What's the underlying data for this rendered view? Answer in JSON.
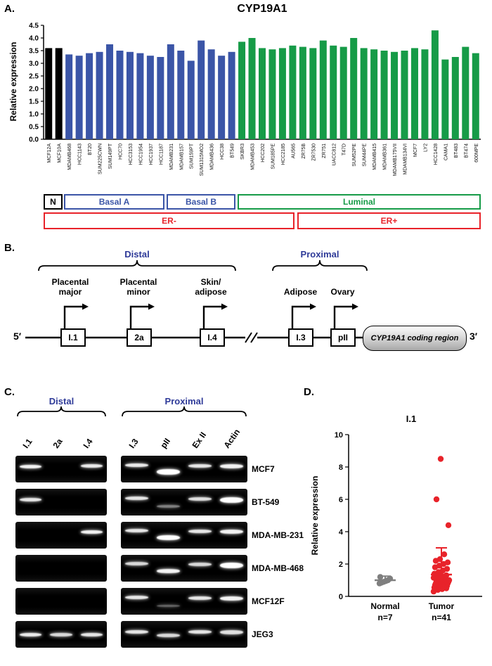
{
  "panelA": {
    "label": "A.",
    "classification": [
      {
        "label": "N",
        "color": "#000000"
      },
      {
        "label": "Basal A",
        "color": "#3b55a7"
      },
      {
        "label": "Basal B",
        "color": "#3b55a7"
      },
      {
        "label": "Luminal",
        "color": "#169b47"
      }
    ],
    "er_status": [
      {
        "label": "ER-"
      },
      {
        "label": "ER+"
      }
    ],
    "er_color": "#e8232a"
  },
  "chart_data": [
    {
      "type": "bar",
      "title": "CYP19A1",
      "ylabel": "Relative expression",
      "ylim": [
        0,
        4.5
      ],
      "yticks": [
        0,
        0.5,
        1,
        1.5,
        2,
        2.5,
        3,
        3.5,
        4,
        4.5
      ],
      "categories": [
        "MCF12A",
        "MCF10A",
        "MDAMB468",
        "HCC1143",
        "BT20",
        "SUM225CWN",
        "SUM149PT",
        "HCC70",
        "HCC3153",
        "HCC1954",
        "HCC1937",
        "HCC1187",
        "MDAMB231",
        "MDAMB157",
        "SUM159PT",
        "SUM1315MO2",
        "MDAMB436",
        "HCC38",
        "BT549",
        "SKBR3",
        "MDAMB453",
        "HCC202",
        "SUM185PE",
        "HCC2185",
        "AU565",
        "ZR75B",
        "ZR7530",
        "ZR751",
        "UACC812",
        "T47D",
        "SUM52PE",
        "SUM44PE",
        "MDAMB415",
        "MDAMB361",
        "MDAMB175VII",
        "MDAMB134VI",
        "MCF7",
        "LY2",
        "HCC1428",
        "CAMA1",
        "BT483",
        "BT474",
        "600MPE"
      ],
      "values": [
        3.6,
        3.6,
        3.35,
        3.3,
        3.4,
        3.45,
        3.75,
        3.5,
        3.45,
        3.4,
        3.3,
        3.25,
        3.75,
        3.5,
        3.1,
        3.9,
        3.55,
        3.3,
        3.45,
        3.85,
        4.0,
        3.6,
        3.55,
        3.6,
        3.7,
        3.65,
        3.6,
        3.9,
        3.7,
        3.65,
        4.0,
        3.6,
        3.55,
        3.5,
        3.45,
        3.5,
        3.6,
        3.55,
        4.3,
        3.15,
        3.25,
        3.65,
        3.4
      ],
      "bar_groups": [
        {
          "name": "N",
          "count": 2,
          "color": "#000000"
        },
        {
          "name": "Basal A",
          "count": 10,
          "color": "#3b55a7"
        },
        {
          "name": "Basal B",
          "count": 7,
          "color": "#3b55a7"
        },
        {
          "name": "Luminal",
          "count": 24,
          "color": "#169b47"
        }
      ],
      "er_minus_count": 25
    },
    {
      "type": "scatter",
      "title": "I.1",
      "ylabel": "Relative expression",
      "ylim": [
        0,
        10
      ],
      "yticks": [
        0,
        2,
        4,
        6,
        8,
        10
      ],
      "groups": [
        {
          "label": "Normal",
          "n_label": "n=7",
          "color": "#7f7f7f",
          "mean": 1.0,
          "sd_top": 1.25,
          "values": [
            0.8,
            0.85,
            0.9,
            0.95,
            1.0,
            1.1,
            1.2
          ]
        },
        {
          "label": "Tumor",
          "n_label": "n=41",
          "color": "#e8232a",
          "mean": 1.35,
          "sd_top": 3.0,
          "values": [
            0.3,
            0.4,
            0.45,
            0.5,
            0.55,
            0.6,
            0.6,
            0.65,
            0.7,
            0.7,
            0.75,
            0.8,
            0.8,
            0.85,
            0.9,
            0.9,
            0.95,
            1.0,
            1.0,
            1.0,
            1.05,
            1.1,
            1.1,
            1.15,
            1.2,
            1.25,
            1.3,
            1.4,
            1.5,
            1.6,
            1.7,
            1.8,
            1.9,
            2.0,
            2.1,
            2.2,
            2.3,
            2.6,
            4.4,
            6.0,
            8.5
          ]
        }
      ]
    }
  ],
  "panelB": {
    "label": "B.",
    "distal_header": "Distal",
    "proximal_header": "Proximal",
    "promoters": [
      {
        "name": "Placental\nmajor",
        "exon": "I.1"
      },
      {
        "name": "Placental\nminor",
        "exon": "2a"
      },
      {
        "name": "Skin/\nadipose",
        "exon": "I.4"
      },
      {
        "name": "Adipose",
        "exon": "I.3"
      },
      {
        "name": "Ovary",
        "exon": "pII"
      }
    ],
    "five_prime": "5′",
    "three_prime": "3′",
    "coding_region": "CYP19A1 coding region"
  },
  "panelC": {
    "label": "C.",
    "distal_header": "Distal",
    "proximal_header": "Proximal",
    "distal_lanes": [
      "I.1",
      "2a",
      "I.4"
    ],
    "proximal_lanes": [
      "I.3",
      "pII",
      "Ex II",
      "Actin"
    ],
    "rows": [
      {
        "label": "MCF7",
        "distal": [
          {
            "l": 0,
            "y": 0.4,
            "i": 0.95
          },
          {
            "l": 2,
            "y": 0.38,
            "i": 0.92
          }
        ],
        "proximal": [
          {
            "l": 0,
            "y": 0.36,
            "i": 0.92
          },
          {
            "l": 1,
            "y": 0.6,
            "i": 1.0,
            "h": 8
          },
          {
            "l": 2,
            "y": 0.38,
            "i": 0.9
          },
          {
            "l": 3,
            "y": 0.4,
            "i": 0.95,
            "h": 6
          }
        ]
      },
      {
        "label": "BT-549",
        "distal": [
          {
            "l": 0,
            "y": 0.42,
            "i": 0.9
          }
        ],
        "proximal": [
          {
            "l": 0,
            "y": 0.36,
            "i": 0.9
          },
          {
            "l": 1,
            "y": 0.66,
            "i": 0.5,
            "h": 4
          },
          {
            "l": 2,
            "y": 0.38,
            "i": 0.88
          },
          {
            "l": 3,
            "y": 0.42,
            "i": 1.0,
            "h": 8
          }
        ]
      },
      {
        "label": "MDA-MB-231",
        "distal": [
          {
            "l": 2,
            "y": 0.38,
            "i": 0.95
          }
        ],
        "proximal": [
          {
            "l": 0,
            "y": 0.34,
            "i": 0.9
          },
          {
            "l": 1,
            "y": 0.6,
            "i": 1.0,
            "h": 7
          },
          {
            "l": 2,
            "y": 0.36,
            "i": 0.9
          },
          {
            "l": 3,
            "y": 0.38,
            "i": 0.95,
            "h": 6
          }
        ]
      },
      {
        "label": "MDA-MB-468",
        "distal": [],
        "proximal": [
          {
            "l": 0,
            "y": 0.34,
            "i": 0.85
          },
          {
            "l": 1,
            "y": 0.6,
            "i": 0.95,
            "h": 6
          },
          {
            "l": 2,
            "y": 0.36,
            "i": 0.85
          },
          {
            "l": 3,
            "y": 0.4,
            "i": 1.0,
            "h": 8
          }
        ]
      },
      {
        "label": "MCF12F",
        "distal": [],
        "proximal": [
          {
            "l": 0,
            "y": 0.36,
            "i": 0.9
          },
          {
            "l": 1,
            "y": 0.68,
            "i": 0.4,
            "h": 3
          },
          {
            "l": 2,
            "y": 0.38,
            "i": 0.9
          },
          {
            "l": 3,
            "y": 0.4,
            "i": 0.95,
            "h": 6
          }
        ]
      },
      {
        "label": "JEG3",
        "distal": [
          {
            "l": 0,
            "y": 0.5,
            "i": 0.92
          },
          {
            "l": 1,
            "y": 0.5,
            "i": 0.85
          },
          {
            "l": 2,
            "y": 0.5,
            "i": 0.9
          }
        ],
        "proximal": [
          {
            "l": 0,
            "y": 0.4,
            "i": 0.9
          },
          {
            "l": 1,
            "y": 0.55,
            "i": 0.85
          },
          {
            "l": 2,
            "y": 0.42,
            "i": 0.9
          },
          {
            "l": 3,
            "y": 0.42,
            "i": 0.88,
            "h": 6
          }
        ]
      }
    ]
  },
  "panelD": {
    "label": "D."
  }
}
